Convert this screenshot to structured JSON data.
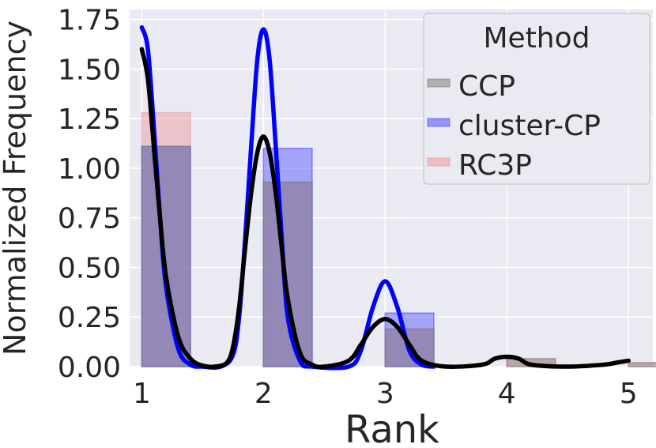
{
  "chart_data": {
    "type": "histogram+kde",
    "title": "",
    "xlabel": "Rank",
    "ylabel": "Normalized Frequency",
    "xlim": [
      0.9,
      5.2
    ],
    "ylim": [
      0,
      1.8
    ],
    "xticks": [
      "1",
      "2",
      "3",
      "4",
      "5"
    ],
    "yticks": [
      "0.00",
      "0.25",
      "0.50",
      "0.75",
      "1.00",
      "1.25",
      "1.50",
      "1.75"
    ],
    "grid": true,
    "legend": {
      "title": "Method",
      "placement": "top-right"
    },
    "bin_width": 0.4,
    "series": [
      {
        "name": "CCP",
        "bar_color": "#808080",
        "line_color": "#000000",
        "bins": [
          {
            "x": 1,
            "value": 1.11
          },
          {
            "x": 2,
            "value": 0.93
          },
          {
            "x": 3,
            "value": 0.19
          },
          {
            "x": 4,
            "value": 0.04
          },
          {
            "x": 5,
            "value": 0.02
          }
        ],
        "kde": [
          {
            "x": 1.0,
            "y": 1.6
          },
          {
            "x": 1.05,
            "y": 1.45
          },
          {
            "x": 1.1,
            "y": 1.1
          },
          {
            "x": 1.15,
            "y": 0.75
          },
          {
            "x": 1.2,
            "y": 0.45
          },
          {
            "x": 1.3,
            "y": 0.15
          },
          {
            "x": 1.4,
            "y": 0.04
          },
          {
            "x": 1.5,
            "y": 0.005
          },
          {
            "x": 1.6,
            "y": 0.0
          },
          {
            "x": 1.7,
            "y": 0.02
          },
          {
            "x": 1.75,
            "y": 0.1
          },
          {
            "x": 1.8,
            "y": 0.3
          },
          {
            "x": 1.85,
            "y": 0.6
          },
          {
            "x": 1.9,
            "y": 0.88
          },
          {
            "x": 1.95,
            "y": 1.08
          },
          {
            "x": 2.0,
            "y": 1.16
          },
          {
            "x": 2.05,
            "y": 1.08
          },
          {
            "x": 2.1,
            "y": 0.88
          },
          {
            "x": 2.15,
            "y": 0.6
          },
          {
            "x": 2.2,
            "y": 0.34
          },
          {
            "x": 2.3,
            "y": 0.07
          },
          {
            "x": 2.4,
            "y": 0.01
          },
          {
            "x": 2.5,
            "y": 0.0
          },
          {
            "x": 2.7,
            "y": 0.03
          },
          {
            "x": 2.8,
            "y": 0.11
          },
          {
            "x": 2.9,
            "y": 0.2
          },
          {
            "x": 3.0,
            "y": 0.24
          },
          {
            "x": 3.1,
            "y": 0.2
          },
          {
            "x": 3.2,
            "y": 0.11
          },
          {
            "x": 3.3,
            "y": 0.03
          },
          {
            "x": 3.5,
            "y": 0.0
          },
          {
            "x": 3.8,
            "y": 0.01
          },
          {
            "x": 3.9,
            "y": 0.04
          },
          {
            "x": 4.0,
            "y": 0.05
          },
          {
            "x": 4.1,
            "y": 0.04
          },
          {
            "x": 4.2,
            "y": 0.01
          },
          {
            "x": 4.5,
            "y": 0.0
          },
          {
            "x": 4.8,
            "y": 0.01
          },
          {
            "x": 4.9,
            "y": 0.02
          },
          {
            "x": 5.0,
            "y": 0.03
          }
        ]
      },
      {
        "name": "cluster-CP",
        "bar_color": "#4d4dff",
        "line_color": "#0000ff",
        "bins": [
          {
            "x": 1,
            "value": 1.11
          },
          {
            "x": 2,
            "value": 1.1
          },
          {
            "x": 3,
            "value": 0.27
          },
          {
            "x": 4,
            "value": 0.0
          },
          {
            "x": 5,
            "value": 0.0
          }
        ],
        "kde": [
          {
            "x": 1.0,
            "y": 1.71
          },
          {
            "x": 1.05,
            "y": 1.6
          },
          {
            "x": 1.1,
            "y": 1.2
          },
          {
            "x": 1.15,
            "y": 0.75
          },
          {
            "x": 1.2,
            "y": 0.4
          },
          {
            "x": 1.3,
            "y": 0.09
          },
          {
            "x": 1.4,
            "y": 0.01
          },
          {
            "x": 1.5,
            "y": 0.0
          },
          {
            "x": 1.65,
            "y": 0.0
          },
          {
            "x": 1.75,
            "y": 0.06
          },
          {
            "x": 1.8,
            "y": 0.25
          },
          {
            "x": 1.85,
            "y": 0.65
          },
          {
            "x": 1.9,
            "y": 1.12
          },
          {
            "x": 1.95,
            "y": 1.55
          },
          {
            "x": 2.0,
            "y": 1.7
          },
          {
            "x": 2.05,
            "y": 1.55
          },
          {
            "x": 2.1,
            "y": 1.12
          },
          {
            "x": 2.15,
            "y": 0.65
          },
          {
            "x": 2.2,
            "y": 0.25
          },
          {
            "x": 2.3,
            "y": 0.03
          },
          {
            "x": 2.4,
            "y": 0.0
          },
          {
            "x": 2.7,
            "y": 0.0
          },
          {
            "x": 2.8,
            "y": 0.08
          },
          {
            "x": 2.9,
            "y": 0.3
          },
          {
            "x": 3.0,
            "y": 0.43
          },
          {
            "x": 3.1,
            "y": 0.3
          },
          {
            "x": 3.2,
            "y": 0.08
          },
          {
            "x": 3.3,
            "y": 0.01
          },
          {
            "x": 3.4,
            "y": 0.0
          }
        ]
      },
      {
        "name": "RC3P",
        "bar_color": "#e8999c",
        "line_color": "#e8999c",
        "bins": [
          {
            "x": 1,
            "value": 1.28
          },
          {
            "x": 2,
            "value": 0.93
          },
          {
            "x": 3,
            "value": 0.19
          },
          {
            "x": 4,
            "value": 0.04
          },
          {
            "x": 5,
            "value": 0.02
          }
        ],
        "kde": []
      }
    ]
  }
}
